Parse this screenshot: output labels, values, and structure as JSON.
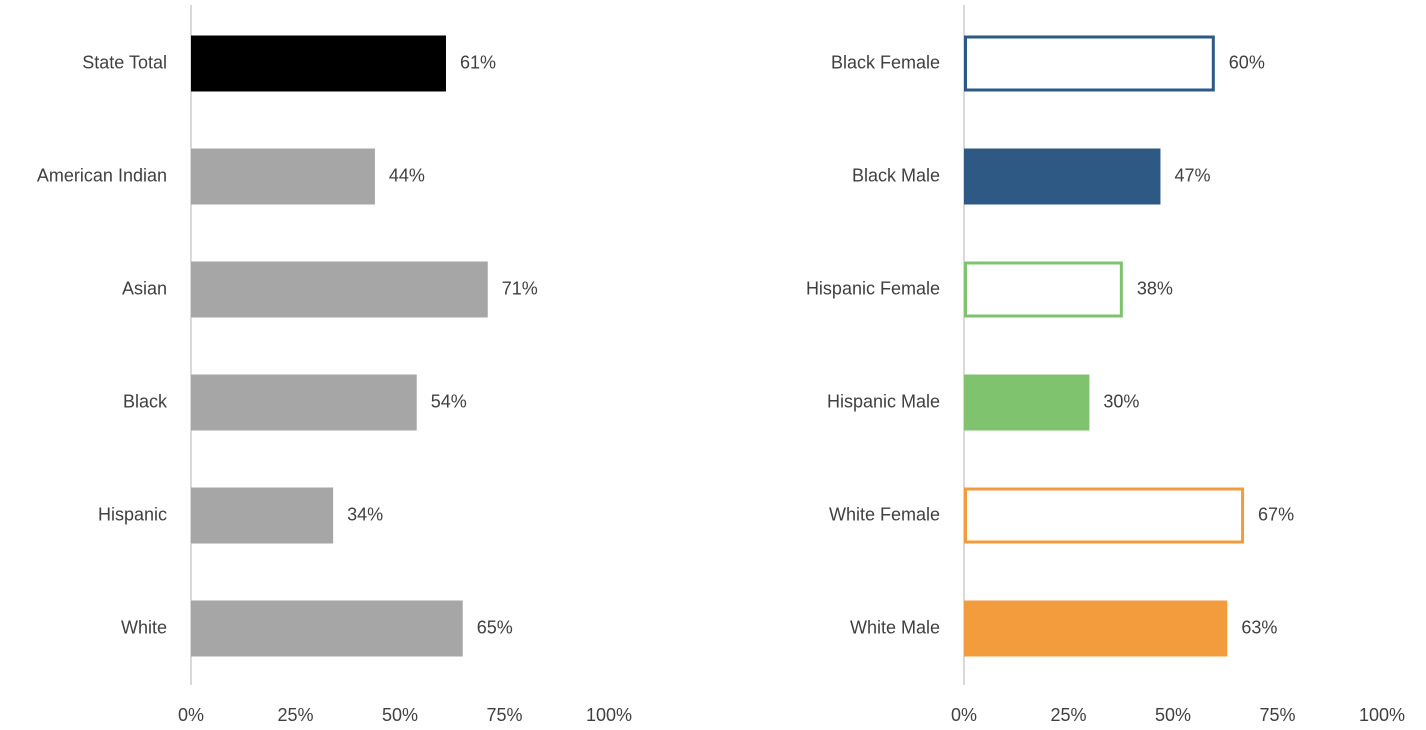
{
  "chart_data": [
    {
      "type": "bar",
      "orientation": "horizontal",
      "categories": [
        "State Total",
        "American Indian",
        "Asian",
        "Black",
        "Hispanic",
        "White"
      ],
      "values": [
        61,
        44,
        71,
        54,
        34,
        65
      ],
      "value_labels": [
        "61%",
        "44%",
        "71%",
        "54%",
        "34%",
        "65%"
      ],
      "colors": [
        "#000000",
        "#a6a6a6",
        "#a6a6a6",
        "#a6a6a6",
        "#a6a6a6",
        "#a6a6a6"
      ],
      "styles": [
        "filled",
        "filled",
        "filled",
        "filled",
        "filled",
        "filled"
      ],
      "xlim": [
        0,
        100
      ],
      "xticks": [
        {
          "value": 0,
          "label": "0%"
        },
        {
          "value": 25,
          "label": "25%"
        },
        {
          "value": 50,
          "label": "50%"
        },
        {
          "value": 75,
          "label": "75%"
        },
        {
          "value": 100,
          "label": "100%"
        }
      ]
    },
    {
      "type": "bar",
      "orientation": "horizontal",
      "categories": [
        "Black Female",
        "Black Male",
        "Hispanic Female",
        "Hispanic Male",
        "White Female",
        "White Male"
      ],
      "values": [
        60,
        47,
        38,
        30,
        67,
        63
      ],
      "value_labels": [
        "60%",
        "47%",
        "38%",
        "30%",
        "67%",
        "63%"
      ],
      "colors": [
        "#2e5984",
        "#2e5984",
        "#7fc36f",
        "#7fc36f",
        "#f39c3d",
        "#f39c3d"
      ],
      "styles": [
        "outline",
        "filled",
        "outline",
        "filled",
        "outline",
        "filled"
      ],
      "xlim": [
        0,
        100
      ],
      "xticks": [
        {
          "value": 0,
          "label": "0%"
        },
        {
          "value": 25,
          "label": "25%"
        },
        {
          "value": 50,
          "label": "50%"
        },
        {
          "value": 75,
          "label": "75%"
        },
        {
          "value": 100,
          "label": "100%"
        }
      ]
    }
  ]
}
